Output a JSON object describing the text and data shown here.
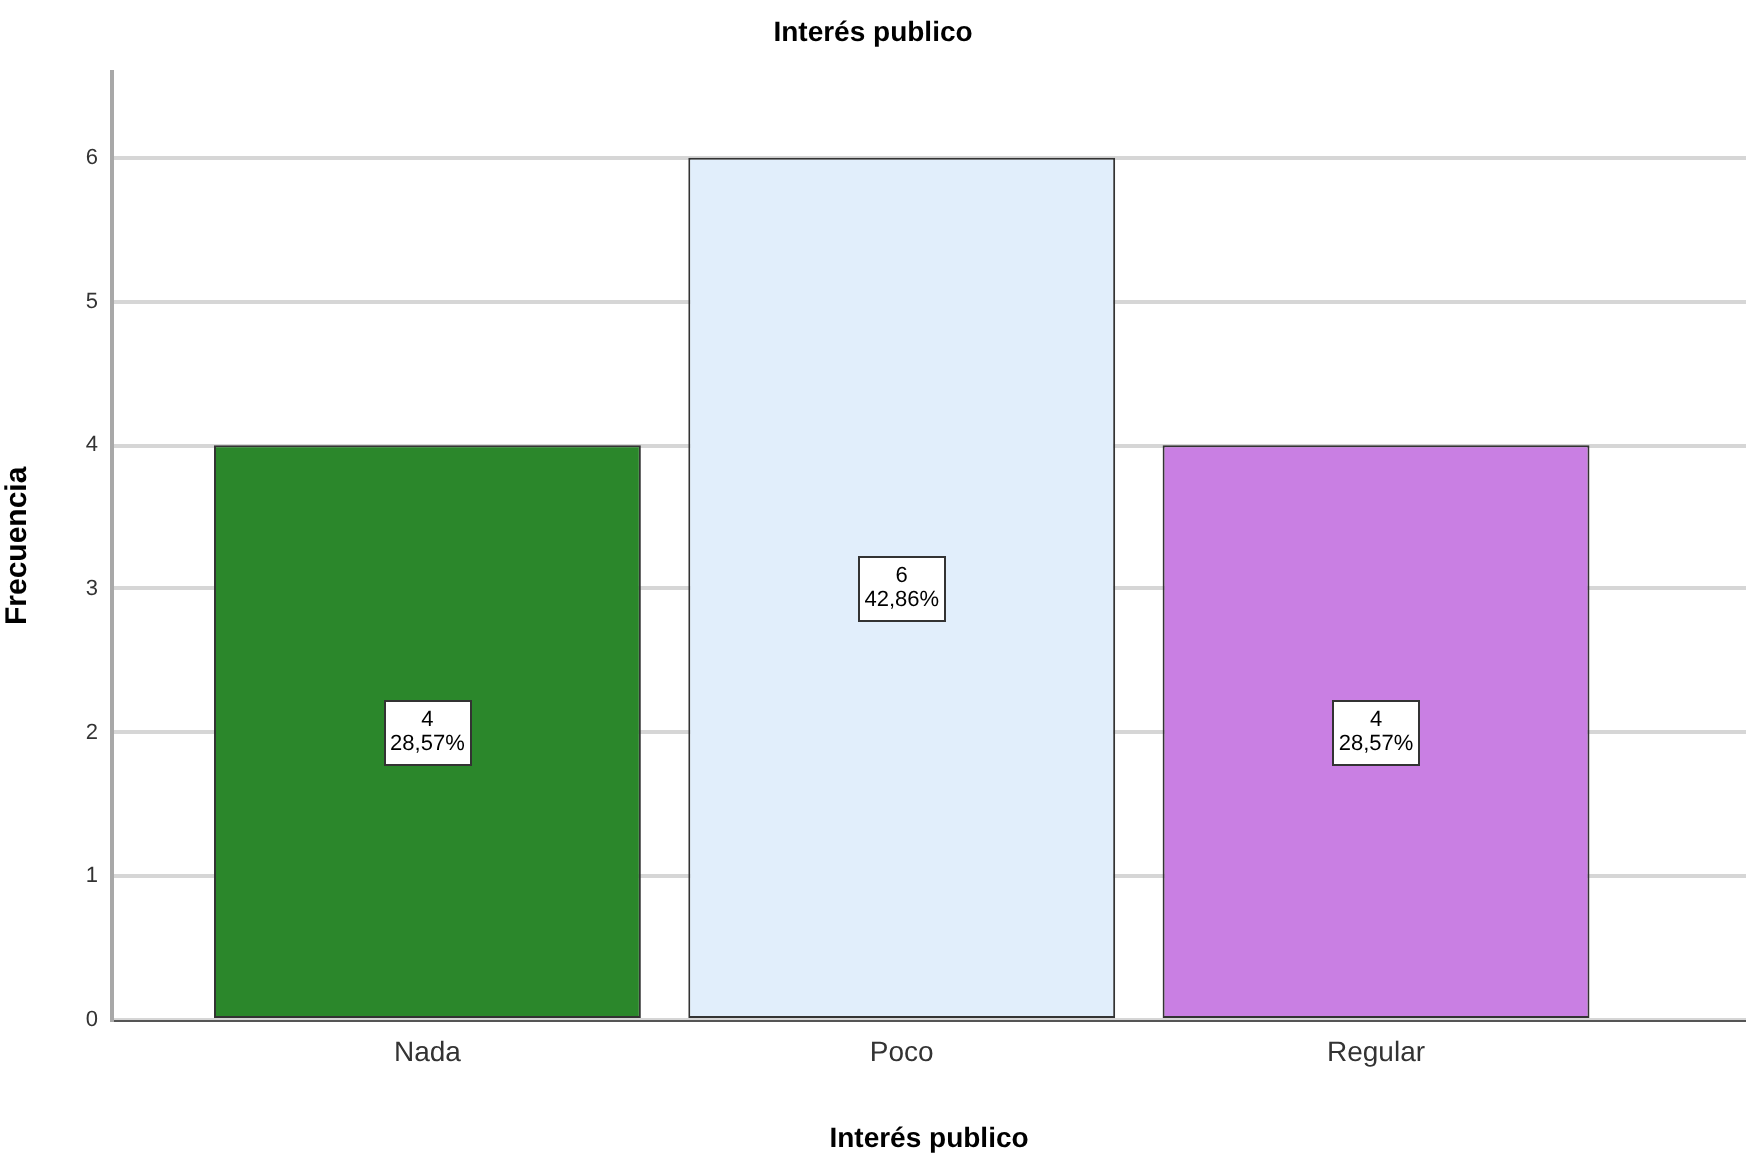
{
  "chart_data": {
    "type": "bar",
    "title": "Interés publico",
    "xlabel": "Interés publico",
    "ylabel": "Frecuencia",
    "categories": [
      "Nada",
      "Poco",
      "Regular"
    ],
    "values": [
      4,
      6,
      4
    ],
    "colors": [
      "#2b872b",
      "#e1eefb",
      "#c97fe3"
    ],
    "value_labels": [
      "4\n28,57%",
      "6\n42,86%",
      "4\n28,57%"
    ],
    "ylim": [
      0,
      6.6
    ],
    "yticks": [
      0,
      1,
      2,
      3,
      4,
      5,
      6
    ],
    "grid": "y",
    "legend": false
  }
}
